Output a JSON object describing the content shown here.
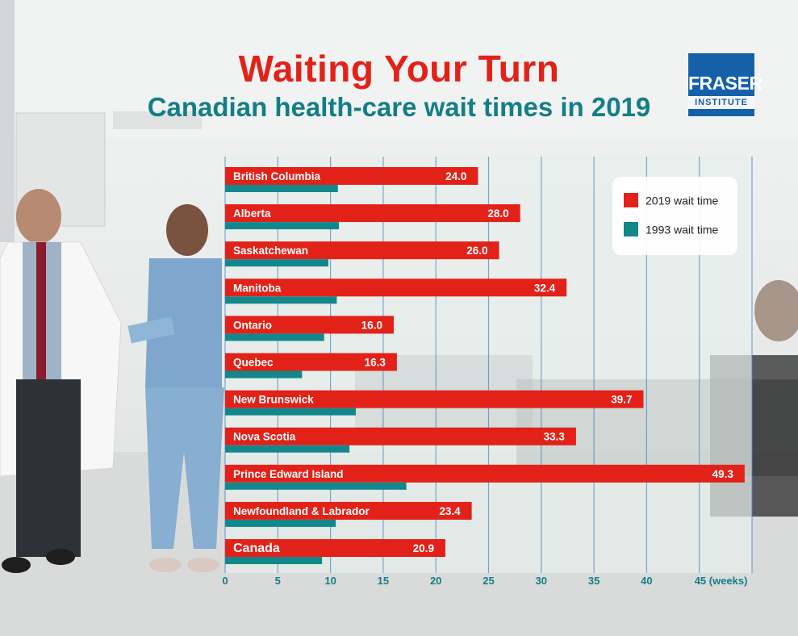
{
  "colors": {
    "red": "#e22219",
    "teal": "#13888c",
    "grid": "#4a86c0",
    "logo_blue": "#1561a9"
  },
  "header": {
    "title": "Waiting Your Turn",
    "subtitle": "Canadian health-care wait times in 2019"
  },
  "logo": {
    "name": "FRASER",
    "sub": "INSTITUTE"
  },
  "legend": {
    "items": [
      {
        "label": "2019 wait time",
        "color": "#e22219"
      },
      {
        "label": "1993 wait time",
        "color": "#13888c"
      }
    ]
  },
  "chart_data": {
    "type": "bar",
    "orientation": "horizontal",
    "title": "Waiting Your Turn",
    "subtitle": "Canadian health-care wait times in 2019",
    "xlabel": "(weeks)",
    "xlim": [
      0,
      50
    ],
    "xticks": [
      0,
      5,
      10,
      15,
      20,
      25,
      30,
      35,
      40,
      45
    ],
    "xtick_last_suffix": "(weeks)",
    "legend_position": "top-right",
    "grid": true,
    "categories": [
      "British Columbia",
      "Alberta",
      "Saskatchewan",
      "Manitoba",
      "Ontario",
      "Quebec",
      "New Brunswick",
      "Nova Scotia",
      "Prince Edward Island",
      "Newfoundland & Labrador",
      "Canada"
    ],
    "series": [
      {
        "name": "2019 wait time",
        "values": [
          24.0,
          28.0,
          26.0,
          32.4,
          16.0,
          16.3,
          39.7,
          33.3,
          49.3,
          23.4,
          20.9
        ],
        "labels": [
          "24.0",
          "28.0",
          "26.0",
          "32.4",
          "16.0",
          "16.3",
          "39.7",
          "33.3",
          "49.3",
          "23.4",
          "20.9"
        ]
      },
      {
        "name": "1993 wait time",
        "values": [
          10.7,
          10.8,
          9.8,
          10.6,
          9.4,
          7.3,
          12.4,
          11.8,
          17.2,
          10.5,
          9.2
        ]
      }
    ]
  }
}
